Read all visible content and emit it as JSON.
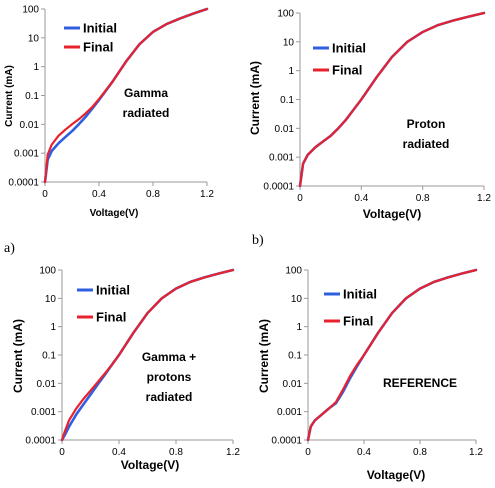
{
  "figure": {
    "panel_labels": [
      "a)",
      "b)"
    ]
  },
  "colors": {
    "initial": "#2f5fe0",
    "final": "#e8222c",
    "axis": "#999999"
  },
  "chart_data": [
    {
      "type": "line",
      "annotation": [
        "Gamma",
        "radiated"
      ],
      "xlabel": "Voltage(V)",
      "ylabel": "Current (mA)",
      "xlim": [
        0,
        1.2
      ],
      "ylim": [
        0.0001,
        100
      ],
      "yscale": "log",
      "xticks": [
        "0",
        "0.4",
        "0.8",
        "1.2"
      ],
      "yticks": [
        "0.0001",
        "0.001",
        "0.01",
        "0.1",
        "1",
        "10",
        "100"
      ],
      "legend": "top-left",
      "series": [
        {
          "name": "Initial",
          "x": [
            0,
            0.02,
            0.05,
            0.1,
            0.15,
            0.2,
            0.25,
            0.3,
            0.35,
            0.4,
            0.5,
            0.6,
            0.7,
            0.8,
            0.9,
            1.0,
            1.1,
            1.2
          ],
          "y": [
            0.0001,
            0.0006,
            0.0012,
            0.0022,
            0.0036,
            0.0058,
            0.01,
            0.018,
            0.035,
            0.07,
            0.3,
            1.5,
            6,
            16,
            30,
            47,
            70,
            100
          ]
        },
        {
          "name": "Final",
          "x": [
            0,
            0.02,
            0.05,
            0.1,
            0.15,
            0.2,
            0.25,
            0.3,
            0.35,
            0.4,
            0.5,
            0.6,
            0.7,
            0.8,
            0.9,
            1.0,
            1.1,
            1.2
          ],
          "y": [
            0.0001,
            0.0009,
            0.002,
            0.004,
            0.0065,
            0.01,
            0.015,
            0.024,
            0.04,
            0.075,
            0.3,
            1.5,
            6,
            16,
            30,
            47,
            70,
            100
          ]
        }
      ]
    },
    {
      "type": "line",
      "annotation": [
        "Proton",
        "radiated"
      ],
      "xlabel": "Voltage(V)",
      "ylabel": "Current (mA)",
      "xlim": [
        0,
        1.2
      ],
      "ylim": [
        0.0001,
        100
      ],
      "yscale": "log",
      "xticks": [
        "0",
        "0.4",
        "0.8",
        "1.2"
      ],
      "yticks": [
        "0.0001",
        "0.001",
        "0.01",
        "0.1",
        "1",
        "10",
        "100"
      ],
      "legend": "top-left",
      "series": [
        {
          "name": "Initial",
          "x": [
            0,
            0.02,
            0.05,
            0.1,
            0.15,
            0.2,
            0.25,
            0.3,
            0.35,
            0.4,
            0.5,
            0.6,
            0.7,
            0.8,
            0.9,
            1.0,
            1.1,
            1.2
          ],
          "y": [
            0.0001,
            0.0006,
            0.0012,
            0.0022,
            0.0035,
            0.0055,
            0.01,
            0.02,
            0.045,
            0.1,
            0.6,
            3,
            10,
            22,
            38,
            55,
            75,
            100
          ]
        },
        {
          "name": "Final",
          "x": [
            0,
            0.02,
            0.05,
            0.1,
            0.15,
            0.2,
            0.25,
            0.3,
            0.35,
            0.4,
            0.5,
            0.6,
            0.7,
            0.8,
            0.9,
            1.0,
            1.1,
            1.2
          ],
          "y": [
            0.0001,
            0.0006,
            0.0012,
            0.0022,
            0.0035,
            0.0055,
            0.01,
            0.02,
            0.045,
            0.1,
            0.6,
            3,
            10,
            22,
            38,
            55,
            75,
            100
          ]
        }
      ]
    },
    {
      "type": "line",
      "annotation": [
        "Gamma +",
        "protons",
        "radiated"
      ],
      "xlabel": "Voltage(V)",
      "ylabel": "Current (mA)",
      "xlim": [
        0,
        1.2
      ],
      "ylim": [
        0.0001,
        100
      ],
      "yscale": "log",
      "xticks": [
        "0",
        "0.4",
        "0.8",
        "1.2"
      ],
      "yticks": [
        "0.0001",
        "0.001",
        "0.01",
        "0.1",
        "1",
        "10",
        "100"
      ],
      "legend": "top-left",
      "series": [
        {
          "name": "Initial",
          "x": [
            0,
            0.02,
            0.05,
            0.1,
            0.15,
            0.2,
            0.25,
            0.3,
            0.35,
            0.4,
            0.5,
            0.6,
            0.7,
            0.8,
            0.9,
            1.0,
            1.1,
            1.2
          ],
          "y": [
            0.0001,
            0.00015,
            0.0003,
            0.0008,
            0.0018,
            0.004,
            0.009,
            0.02,
            0.045,
            0.1,
            0.6,
            3,
            10,
            22,
            38,
            55,
            75,
            100
          ]
        },
        {
          "name": "Final",
          "x": [
            0,
            0.02,
            0.05,
            0.1,
            0.15,
            0.2,
            0.25,
            0.3,
            0.35,
            0.4,
            0.5,
            0.6,
            0.7,
            0.8,
            0.9,
            1.0,
            1.1,
            1.2
          ],
          "y": [
            0.0001,
            0.0002,
            0.0005,
            0.0013,
            0.0028,
            0.0055,
            0.011,
            0.022,
            0.045,
            0.1,
            0.6,
            3,
            10,
            22,
            38,
            55,
            75,
            100
          ]
        }
      ]
    },
    {
      "type": "line",
      "annotation": [
        "REFERENCE"
      ],
      "xlabel": "Voltage(V)",
      "ylabel": "Current (mA)",
      "xlim": [
        0,
        1.2
      ],
      "ylim": [
        0.0001,
        100
      ],
      "yscale": "log",
      "xticks": [
        "0",
        "0.4",
        "0.8",
        "1.2"
      ],
      "yticks": [
        "0.0001",
        "0.001",
        "0.01",
        "0.1",
        "1",
        "10",
        "100"
      ],
      "legend": "top-left",
      "series": [
        {
          "name": "Initial",
          "x": [
            0,
            0.02,
            0.05,
            0.1,
            0.15,
            0.2,
            0.25,
            0.3,
            0.35,
            0.4,
            0.5,
            0.6,
            0.7,
            0.8,
            0.9,
            1.0,
            1.1,
            1.2
          ],
          "y": [
            0.0001,
            0.0003,
            0.0005,
            0.0008,
            0.0013,
            0.002,
            0.005,
            0.015,
            0.04,
            0.1,
            0.6,
            3,
            10,
            22,
            38,
            55,
            75,
            100
          ]
        },
        {
          "name": "Final",
          "x": [
            0,
            0.02,
            0.05,
            0.1,
            0.15,
            0.2,
            0.25,
            0.3,
            0.35,
            0.4,
            0.5,
            0.6,
            0.7,
            0.8,
            0.9,
            1.0,
            1.1,
            1.2
          ],
          "y": [
            0.0001,
            0.0003,
            0.0005,
            0.0008,
            0.0013,
            0.0022,
            0.006,
            0.018,
            0.045,
            0.1,
            0.6,
            3,
            10,
            22,
            38,
            55,
            75,
            100
          ]
        }
      ]
    }
  ]
}
